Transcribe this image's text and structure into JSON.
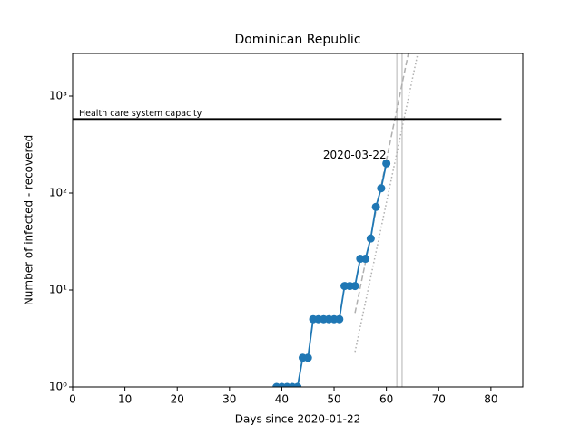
{
  "chart_data": {
    "type": "line",
    "title": "Dominican Republic",
    "xlabel": "Days since 2020-01-22",
    "ylabel": "Number of infected - recovered",
    "xlim": [
      0,
      86.1
    ],
    "ylim": [
      1,
      2750
    ],
    "yscale": "log",
    "xticks": [
      0,
      10,
      20,
      30,
      40,
      50,
      60,
      70,
      80
    ],
    "yticks": [
      {
        "value": 1,
        "label": "10⁰"
      },
      {
        "value": 10,
        "label": "10¹"
      },
      {
        "value": 100,
        "label": "10²"
      },
      {
        "value": 1000,
        "label": "10³"
      }
    ],
    "series": [
      {
        "color": "#1f77b4",
        "x": [
          39,
          40,
          41,
          42,
          43,
          44,
          45,
          46,
          47,
          48,
          49,
          50,
          51,
          52,
          53,
          54,
          55,
          56,
          57,
          58,
          59,
          60
        ],
        "values": [
          1,
          1,
          1,
          1,
          1,
          2,
          2,
          5,
          5,
          5,
          5,
          5,
          5,
          11,
          11,
          11,
          21,
          21,
          34,
          72,
          112,
          202
        ]
      }
    ],
    "fits": [
      {
        "color": "#b0b0b0",
        "style": "dotted",
        "x": [
          54,
          66
        ],
        "values": [
          2.3,
          2750
        ]
      },
      {
        "color": "#b0b0b0",
        "style": "dashed",
        "x": [
          54,
          64.2
        ],
        "values": [
          5.8,
          2750
        ]
      }
    ],
    "vlines": {
      "color": "#cccccc",
      "x": [
        62,
        63
      ]
    },
    "capacity": {
      "label": "Health care system capacity",
      "value": 580,
      "x": [
        0,
        82
      ],
      "color": "#000000"
    },
    "annotation": {
      "text": "2020-03-22",
      "x": 60,
      "y": 202
    }
  }
}
